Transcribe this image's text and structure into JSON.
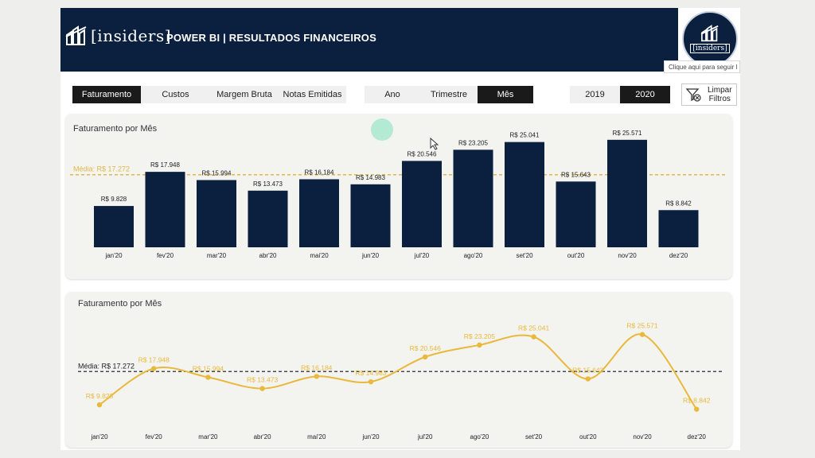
{
  "header": {
    "logo_text": "[insiders]",
    "title": "POWER BI | RESULTADOS FINANCEIROS",
    "circle_logo_text": "[insiders]",
    "tooltip": "Clique aqui para seguir l"
  },
  "metric_tabs": [
    {
      "label": "Faturamento",
      "active": true
    },
    {
      "label": "Custos",
      "active": false
    },
    {
      "label": "Margem Bruta",
      "active": false
    },
    {
      "label": "Notas Emitidas",
      "active": false
    }
  ],
  "period_tabs": [
    {
      "label": "Ano",
      "active": false
    },
    {
      "label": "Trimestre",
      "active": false
    },
    {
      "label": "Mês",
      "active": true
    }
  ],
  "year_tabs": [
    {
      "label": "2019",
      "active": false
    },
    {
      "label": "2020",
      "active": true
    }
  ],
  "clear_filters": {
    "line1": "Limpar",
    "line2": "Filtros",
    "icon": "filter-clear-icon"
  },
  "colors": {
    "bar": "#0b1f3f",
    "line": "#e9b93b",
    "avg_bar_chart": "#e0b94a",
    "avg_line_chart": "#4a4a4a",
    "header": "#0b1f3f"
  },
  "chart_data": [
    {
      "type": "bar",
      "title": "Faturamento por Mês",
      "categories": [
        "jan'20",
        "fev'20",
        "mar'20",
        "abr'20",
        "mai'20",
        "jun'20",
        "jul'20",
        "ago'20",
        "set'20",
        "out'20",
        "nov'20",
        "dez'20"
      ],
      "values": [
        9828,
        17948,
        15994,
        13473,
        16184,
        14983,
        20546,
        23205,
        25041,
        15643,
        25571,
        8842
      ],
      "data_labels": [
        "R$ 9.828",
        "R$ 17.948",
        "R$ 15.994",
        "R$ 13.473",
        "R$ 16.184",
        "R$ 14.983",
        "R$ 20.546",
        "R$ 23.205",
        "R$ 25.041",
        "R$ 15.643",
        "R$ 25.571",
        "R$ 8.842"
      ],
      "average": 17272,
      "average_label": "Média: R$ 17.272",
      "ylim": [
        0,
        28000
      ],
      "grid": false
    },
    {
      "type": "line",
      "title": "Faturamento por Mês",
      "categories": [
        "jan'20",
        "fev'20",
        "mar'20",
        "abr'20",
        "mai'20",
        "jun'20",
        "jul'20",
        "ago'20",
        "set'20",
        "out'20",
        "nov'20",
        "dez'20"
      ],
      "values": [
        9828,
        17948,
        15994,
        13473,
        16184,
        14983,
        20546,
        23205,
        25041,
        15643,
        25571,
        8842
      ],
      "data_labels": [
        "R$ 9.828",
        "R$ 17.948",
        "R$ 15.994",
        "R$ 13.473",
        "R$ 16.184",
        "R$ 14.983",
        "R$ 20.546",
        "R$ 23.205",
        "R$ 25.041",
        "R$ 15.643",
        "R$ 25.571",
        "R$ 8.842"
      ],
      "average": 17272,
      "average_label": "Média: R$ 17.272",
      "ylim": [
        7000,
        28000
      ],
      "grid": false
    }
  ]
}
